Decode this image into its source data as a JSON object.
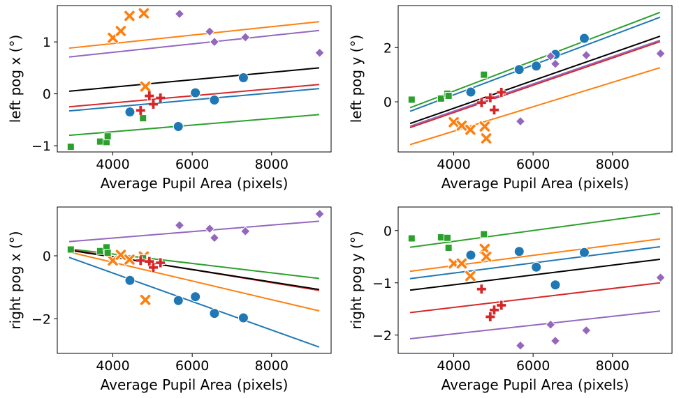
{
  "colors": {
    "blue": "#1f77b4",
    "orange": "#ff7f0e",
    "green": "#2ca02c",
    "red": "#d62728",
    "purple": "#9467bd",
    "black": "#000000"
  },
  "chart_data": [
    {
      "type": "scatter",
      "xlabel": "Average Pupil Area (pixels)",
      "ylabel": "left pog x (°)",
      "xlim": [
        2600,
        9500
      ],
      "ylim": [
        -1.12,
        1.7
      ],
      "xticks": [
        4000,
        6000,
        8000
      ],
      "yticks": [
        -1,
        0,
        1
      ],
      "series": [
        {
          "color": "blue",
          "marker": "circle",
          "points": [
            [
              4430,
              -0.35
            ],
            [
              5650,
              -0.63
            ],
            [
              6080,
              0.02
            ],
            [
              6560,
              -0.12
            ],
            [
              7290,
              0.31
            ]
          ],
          "fit": [
            [
              2900,
              -0.33
            ],
            [
              9200,
              0.1
            ]
          ]
        },
        {
          "color": "orange",
          "marker": "x",
          "points": [
            [
              4000,
              1.08
            ],
            [
              4200,
              1.21
            ],
            [
              4420,
              1.5
            ],
            [
              4780,
              1.55
            ],
            [
              4820,
              0.14
            ]
          ],
          "fit": [
            [
              2900,
              0.88
            ],
            [
              9200,
              1.39
            ]
          ]
        },
        {
          "color": "green",
          "marker": "square",
          "points": [
            [
              2940,
              -1.02
            ],
            [
              3680,
              -0.92
            ],
            [
              3840,
              -0.93
            ],
            [
              3870,
              -0.82
            ],
            [
              4760,
              -0.47
            ]
          ],
          "fit": [
            [
              2900,
              -0.8
            ],
            [
              9200,
              -0.4
            ]
          ]
        },
        {
          "color": "red",
          "marker": "plus",
          "points": [
            [
              4700,
              -0.32
            ],
            [
              4920,
              -0.04
            ],
            [
              5020,
              -0.2
            ],
            [
              5200,
              -0.08
            ]
          ],
          "fit": [
            [
              2900,
              -0.25
            ],
            [
              9200,
              0.18
            ]
          ]
        },
        {
          "color": "purple",
          "marker": "diamond",
          "points": [
            [
              5680,
              1.54
            ],
            [
              6440,
              1.2
            ],
            [
              6560,
              1.0
            ],
            [
              7340,
              1.09
            ],
            [
              9210,
              0.79
            ]
          ],
          "fit": [
            [
              2900,
              0.71
            ],
            [
              9200,
              1.22
            ]
          ]
        },
        {
          "color": "black",
          "marker": "none",
          "points": [],
          "fit": [
            [
              2900,
              0.05
            ],
            [
              9200,
              0.5
            ]
          ]
        }
      ]
    },
    {
      "type": "scatter",
      "xlabel": "Average Pupil Area (pixels)",
      "ylabel": "left pog y (°)",
      "xlim": [
        2600,
        9500
      ],
      "ylim": [
        -1.85,
        3.55
      ],
      "xticks": [
        4000,
        6000,
        8000
      ],
      "yticks": [
        0,
        2
      ],
      "series": [
        {
          "color": "blue",
          "marker": "circle",
          "points": [
            [
              4430,
              0.36
            ],
            [
              5650,
              1.19
            ],
            [
              6080,
              1.32
            ],
            [
              6560,
              1.75
            ],
            [
              7290,
              2.34
            ]
          ],
          "fit": [
            [
              2900,
              -0.35
            ],
            [
              9200,
              3.12
            ]
          ]
        },
        {
          "color": "orange",
          "marker": "x",
          "points": [
            [
              4000,
              -0.75
            ],
            [
              4200,
              -0.88
            ],
            [
              4420,
              -1.03
            ],
            [
              4780,
              -0.91
            ],
            [
              4820,
              -1.35
            ]
          ],
          "fit": [
            [
              2900,
              -1.58
            ],
            [
              9200,
              1.26
            ]
          ]
        },
        {
          "color": "green",
          "marker": "square",
          "points": [
            [
              2940,
              0.08
            ],
            [
              3680,
              0.12
            ],
            [
              3840,
              0.3
            ],
            [
              3870,
              0.22
            ],
            [
              4760,
              1.0
            ]
          ],
          "fit": [
            [
              2900,
              -0.22
            ],
            [
              9200,
              3.3
            ]
          ]
        },
        {
          "color": "red",
          "marker": "plus",
          "points": [
            [
              4700,
              -0.03
            ],
            [
              4920,
              0.15
            ],
            [
              5020,
              -0.3
            ],
            [
              5200,
              0.35
            ]
          ],
          "fit": [
            [
              2900,
              -0.95
            ],
            [
              9200,
              2.22
            ]
          ]
        },
        {
          "color": "purple",
          "marker": "diamond",
          "points": [
            [
              5680,
              -0.72
            ],
            [
              6440,
              1.68
            ],
            [
              6560,
              1.4
            ],
            [
              7340,
              1.72
            ],
            [
              9210,
              1.78
            ]
          ],
          "fit": [
            [
              2900,
              -0.9
            ],
            [
              9200,
              2.27
            ]
          ]
        },
        {
          "color": "black",
          "marker": "none",
          "points": [],
          "fit": [
            [
              2900,
              -0.8
            ],
            [
              9200,
              2.42
            ]
          ]
        }
      ]
    },
    {
      "type": "scatter",
      "xlabel": "Average Pupil Area (pixels)",
      "ylabel": "right pog x (°)",
      "xlim": [
        2600,
        9500
      ],
      "ylim": [
        -3.1,
        1.55
      ],
      "xticks": [
        4000,
        6000,
        8000
      ],
      "yticks": [
        -2,
        0
      ],
      "series": [
        {
          "color": "blue",
          "marker": "circle",
          "points": [
            [
              4430,
              -0.78
            ],
            [
              5650,
              -1.42
            ],
            [
              6080,
              -1.3
            ],
            [
              6560,
              -1.83
            ],
            [
              7290,
              -1.97
            ]
          ],
          "fit": [
            [
              2900,
              -0.05
            ],
            [
              9200,
              -2.9
            ]
          ]
        },
        {
          "color": "orange",
          "marker": "x",
          "points": [
            [
              4000,
              -0.15
            ],
            [
              4200,
              0.03
            ],
            [
              4420,
              -0.12
            ],
            [
              4780,
              -0.02
            ],
            [
              4820,
              -1.4
            ]
          ],
          "fit": [
            [
              2900,
              0.12
            ],
            [
              9200,
              -1.75
            ]
          ]
        },
        {
          "color": "green",
          "marker": "square",
          "points": [
            [
              2940,
              0.2
            ],
            [
              3680,
              0.15
            ],
            [
              3840,
              0.27
            ],
            [
              3870,
              0.1
            ],
            [
              4760,
              -0.08
            ]
          ],
          "fit": [
            [
              2900,
              0.22
            ],
            [
              9200,
              -0.72
            ]
          ]
        },
        {
          "color": "red",
          "marker": "plus",
          "points": [
            [
              4700,
              -0.15
            ],
            [
              4920,
              -0.18
            ],
            [
              5020,
              -0.37
            ],
            [
              5200,
              -0.22
            ]
          ],
          "fit": [
            [
              2900,
              0.2
            ],
            [
              9200,
              -1.1
            ]
          ]
        },
        {
          "color": "purple",
          "marker": "diamond",
          "points": [
            [
              5680,
              0.97
            ],
            [
              6440,
              0.86
            ],
            [
              6560,
              0.57
            ],
            [
              7340,
              0.78
            ],
            [
              9210,
              1.33
            ]
          ],
          "fit": [
            [
              2900,
              0.45
            ],
            [
              9200,
              1.1
            ]
          ]
        },
        {
          "color": "black",
          "marker": "none",
          "points": [],
          "fit": [
            [
              2900,
              0.18
            ],
            [
              9200,
              -1.07
            ]
          ]
        }
      ]
    },
    {
      "type": "scatter",
      "xlabel": "Average Pupil Area (pixels)",
      "ylabel": "right pog y (°)",
      "xlim": [
        2600,
        9500
      ],
      "ylim": [
        -2.35,
        0.45
      ],
      "xticks": [
        4000,
        6000,
        8000
      ],
      "yticks": [
        -2,
        -1,
        0
      ],
      "series": [
        {
          "color": "blue",
          "marker": "circle",
          "points": [
            [
              4430,
              -0.47
            ],
            [
              5650,
              -0.4
            ],
            [
              6080,
              -0.7
            ],
            [
              6560,
              -1.04
            ],
            [
              7290,
              -0.42
            ]
          ],
          "fit": [
            [
              2900,
              -0.92
            ],
            [
              9200,
              -0.31
            ]
          ]
        },
        {
          "color": "orange",
          "marker": "x",
          "points": [
            [
              4000,
              -0.63
            ],
            [
              4200,
              -0.63
            ],
            [
              4420,
              -0.87
            ],
            [
              4780,
              -0.35
            ],
            [
              4820,
              -0.5
            ]
          ],
          "fit": [
            [
              2900,
              -0.78
            ],
            [
              9200,
              -0.16
            ]
          ]
        },
        {
          "color": "green",
          "marker": "square",
          "points": [
            [
              2940,
              -0.15
            ],
            [
              3680,
              -0.13
            ],
            [
              3840,
              -0.14
            ],
            [
              3870,
              -0.33
            ],
            [
              4760,
              -0.07
            ]
          ],
          "fit": [
            [
              2900,
              -0.32
            ],
            [
              9200,
              0.33
            ]
          ]
        },
        {
          "color": "red",
          "marker": "plus",
          "points": [
            [
              4700,
              -1.12
            ],
            [
              4920,
              -1.65
            ],
            [
              5020,
              -1.52
            ],
            [
              5200,
              -1.43
            ]
          ],
          "fit": [
            [
              2900,
              -1.57
            ],
            [
              9200,
              -1.0
            ]
          ]
        },
        {
          "color": "purple",
          "marker": "diamond",
          "points": [
            [
              5680,
              -2.2
            ],
            [
              6440,
              -1.8
            ],
            [
              6560,
              -2.11
            ],
            [
              7340,
              -1.91
            ],
            [
              9210,
              -0.9
            ]
          ],
          "fit": [
            [
              2900,
              -2.07
            ],
            [
              9200,
              -1.54
            ]
          ]
        },
        {
          "color": "black",
          "marker": "none",
          "points": [],
          "fit": [
            [
              2900,
              -1.14
            ],
            [
              9200,
              -0.55
            ]
          ]
        }
      ]
    }
  ]
}
